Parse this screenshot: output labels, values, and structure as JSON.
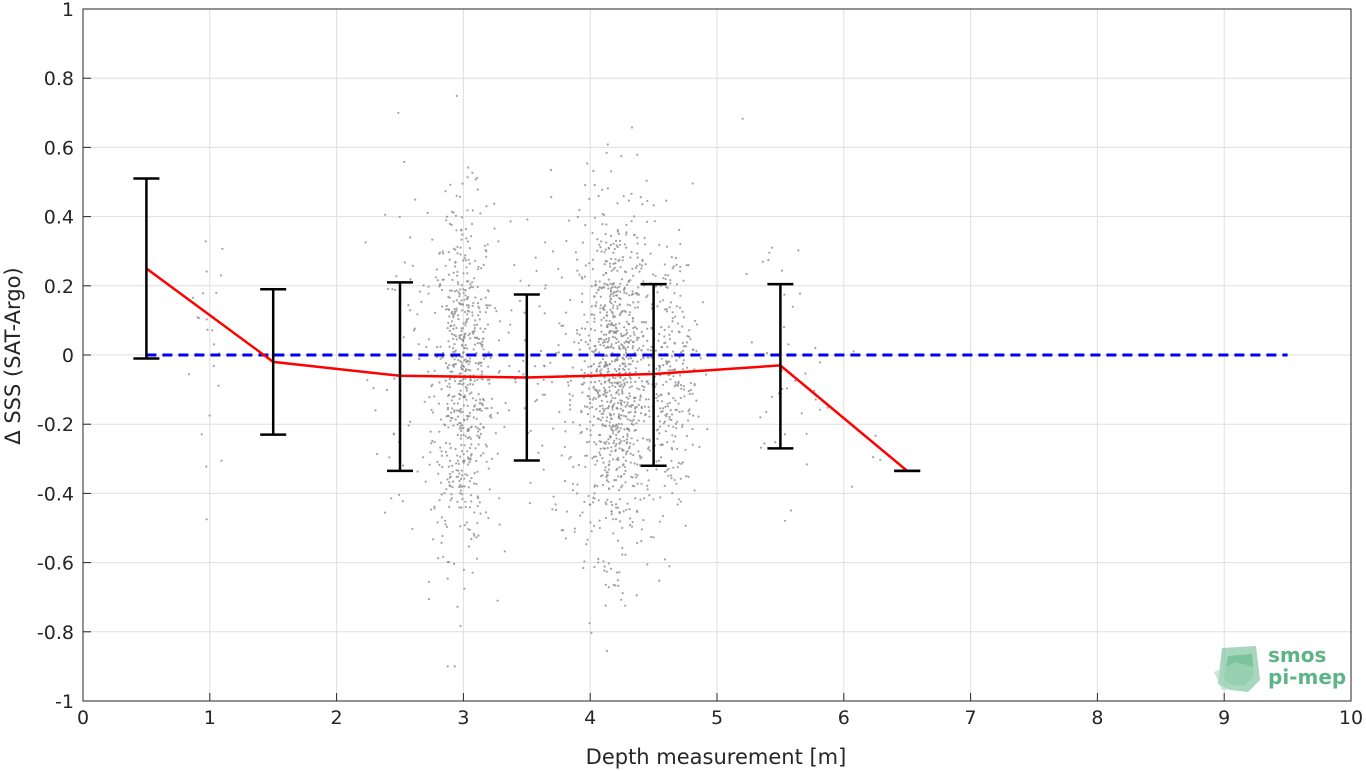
{
  "chart_data": {
    "type": "scatter",
    "title": "",
    "xlabel": "Depth measurement [m]",
    "ylabel": "Δ SSS (SAT-Argo)",
    "xlim": [
      0,
      10
    ],
    "ylim": [
      -1,
      1
    ],
    "x_ticks": [
      "0",
      "1",
      "2",
      "3",
      "4",
      "5",
      "6",
      "7",
      "8",
      "9",
      "10"
    ],
    "y_ticks": [
      "-1",
      "-0.8",
      "-0.6",
      "-0.4",
      "-0.2",
      "0",
      "0.2",
      "0.4",
      "0.6",
      "0.8",
      "1"
    ],
    "grid": true,
    "scatter_clusters": [
      {
        "x_center": 1.0,
        "x_spread": 0.08,
        "y_center": 0.05,
        "y_spread": 0.2,
        "count": 25
      },
      {
        "x_center": 2.6,
        "x_spread": 0.18,
        "y_center": -0.05,
        "y_spread": 0.3,
        "count": 60
      },
      {
        "x_center": 3.0,
        "x_spread": 0.12,
        "y_center": -0.07,
        "y_spread": 0.25,
        "count": 650
      },
      {
        "x_center": 3.55,
        "x_spread": 0.22,
        "y_center": -0.05,
        "y_spread": 0.25,
        "count": 90
      },
      {
        "x_center": 4.2,
        "x_spread": 0.15,
        "y_center": -0.07,
        "y_spread": 0.25,
        "count": 1000
      },
      {
        "x_center": 4.65,
        "x_spread": 0.1,
        "y_center": -0.05,
        "y_spread": 0.2,
        "count": 250
      },
      {
        "x_center": 5.5,
        "x_spread": 0.15,
        "y_center": -0.03,
        "y_spread": 0.2,
        "count": 40
      },
      {
        "x_center": 6.1,
        "x_spread": 0.15,
        "y_center": -0.25,
        "y_spread": 0.15,
        "count": 5
      }
    ],
    "series": [
      {
        "x": [
          0.5,
          1.5,
          2.5,
          3.5,
          4.5,
          5.5,
          6.5
        ],
        "y": [
          0.25,
          -0.02,
          -0.06,
          -0.065,
          -0.055,
          -0.03,
          -0.335
        ],
        "err_lower": [
          -0.01,
          -0.23,
          -0.335,
          -0.305,
          -0.32,
          -0.27,
          -0.335
        ],
        "err_upper": [
          0.51,
          0.19,
          0.21,
          0.175,
          0.205,
          0.205,
          -0.335
        ]
      }
    ],
    "reference_line": {
      "y": 0,
      "x_from": 0.5,
      "x_to": 9.5,
      "style": "dashed"
    },
    "colors": {
      "mean_line": "#ff0000",
      "error_bars": "#000000",
      "reference_line": "#0000ee",
      "scatter": "#8c8c8c"
    }
  },
  "logo": {
    "line1": "smos",
    "line2": "pi-mep",
    "color": "#5fb487"
  }
}
